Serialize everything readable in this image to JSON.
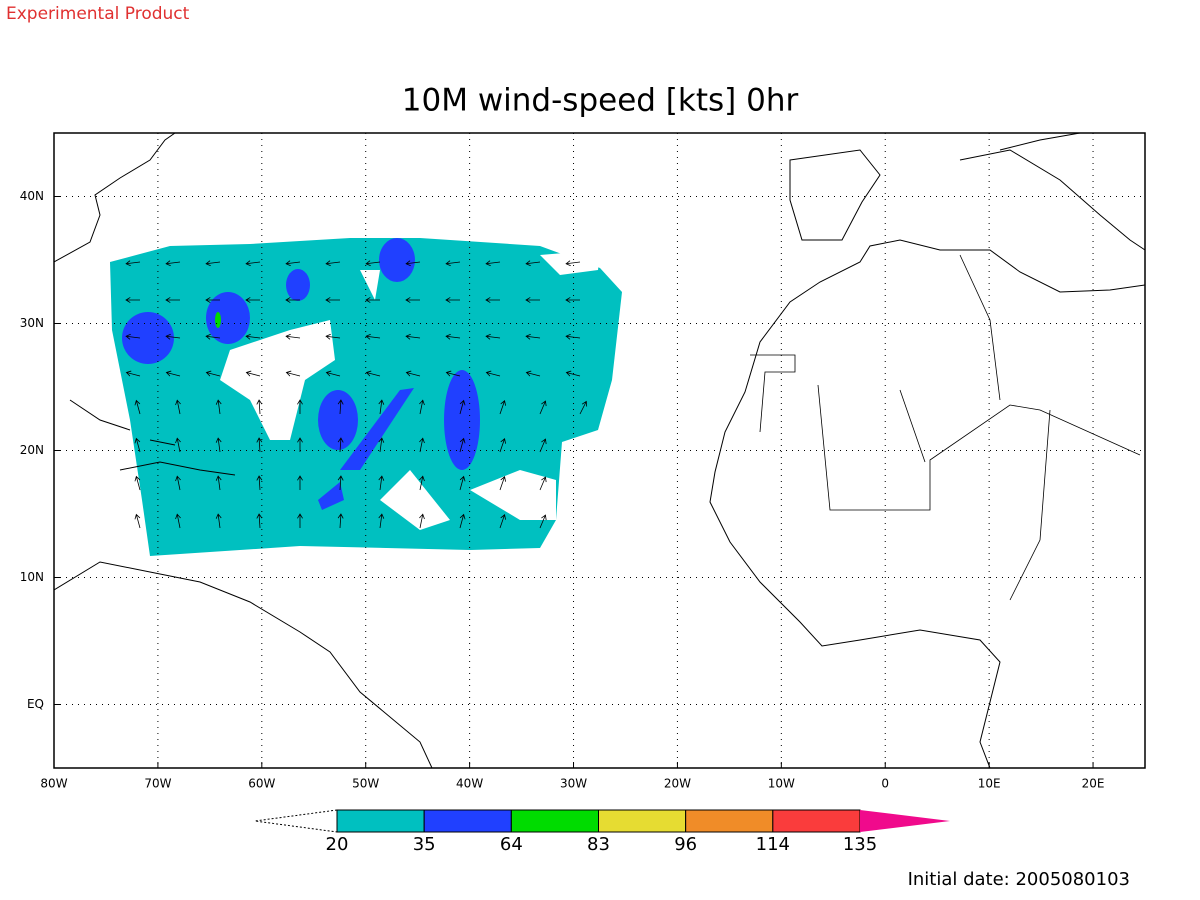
{
  "chart_data": {
    "type": "map",
    "note": "Experimental Product",
    "title": "10M wind-speed [kts] 0hr",
    "xlim": [
      -80,
      25
    ],
    "ylim": [
      -5,
      45
    ],
    "xticks": [
      {
        "value": -80,
        "label": "80W"
      },
      {
        "value": -70,
        "label": "70W"
      },
      {
        "value": -60,
        "label": "60W"
      },
      {
        "value": -50,
        "label": "50W"
      },
      {
        "value": -40,
        "label": "40W"
      },
      {
        "value": -30,
        "label": "30W"
      },
      {
        "value": -20,
        "label": "20W"
      },
      {
        "value": -10,
        "label": "10W"
      },
      0,
      {
        "value": 10,
        "label": "10E"
      },
      {
        "value": 20,
        "label": "20E"
      }
    ],
    "yticks": [
      {
        "value": 0,
        "label": "EQ"
      },
      {
        "value": 10,
        "label": "10N"
      },
      {
        "value": 20,
        "label": "20N"
      },
      {
        "value": 30,
        "label": "30N"
      },
      {
        "value": 40,
        "label": "40N"
      }
    ],
    "grid": true,
    "colorbar": {
      "levels": [
        20,
        35,
        64,
        83,
        96,
        114,
        135
      ],
      "colors": [
        "#00c0c0",
        "#2040ff",
        "#00dc00",
        "#e6dc32",
        "#f08c28",
        "#fa3c3c"
      ],
      "extend_color": "#f00a8c"
    },
    "footer": "Initial date: 2005080103"
  }
}
